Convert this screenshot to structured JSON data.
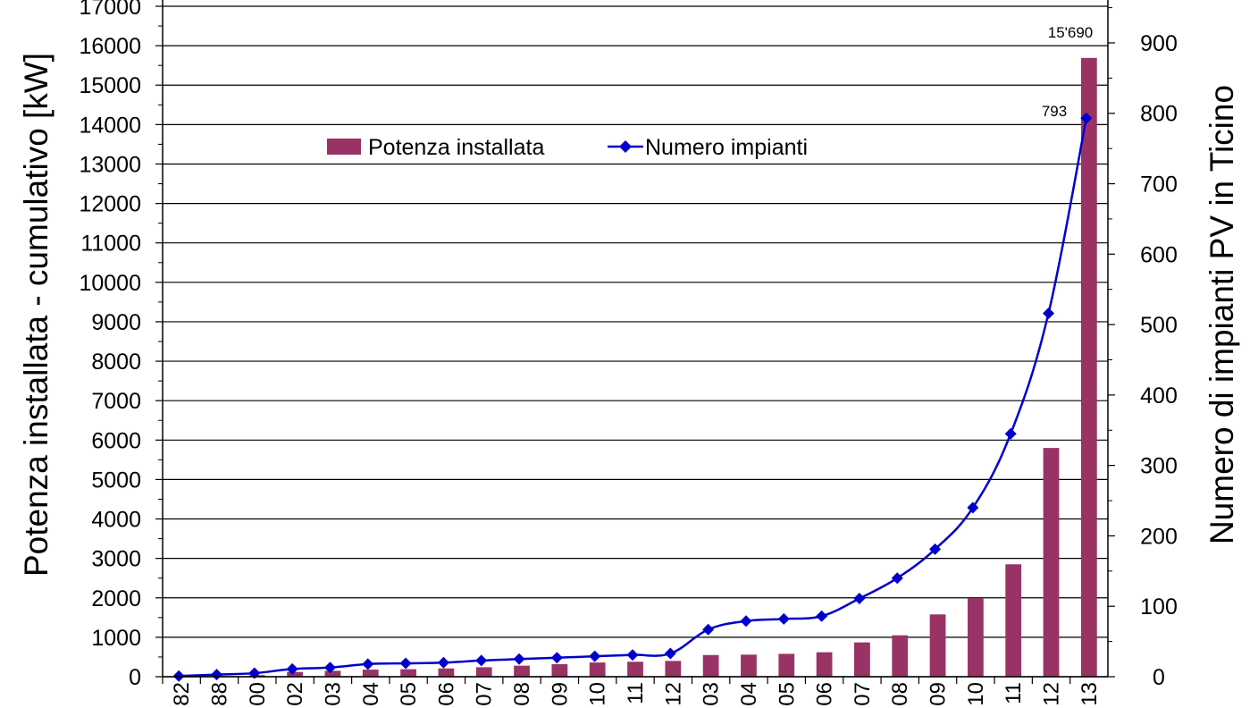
{
  "chart_data": {
    "type": "bar+line",
    "categories": [
      "82",
      "88",
      "00",
      "02",
      "03",
      "04",
      "05",
      "06",
      "07",
      "08",
      "09",
      "10",
      "11",
      "12",
      "03",
      "04",
      "05",
      "06",
      "07",
      "08",
      "09",
      "10",
      "11",
      "12",
      "13"
    ],
    "series": [
      {
        "name": "Potenza installata",
        "type": "bar",
        "axis": "left",
        "color": "#993366",
        "values": [
          10,
          20,
          40,
          120,
          150,
          180,
          190,
          210,
          240,
          280,
          320,
          360,
          380,
          400,
          550,
          560,
          580,
          620,
          870,
          1050,
          1580,
          1990,
          2850,
          5800,
          15690
        ]
      },
      {
        "name": "Numero impianti",
        "type": "line",
        "axis": "right",
        "color": "#0000cc",
        "values": [
          1,
          3,
          5,
          11,
          13,
          18,
          19,
          20,
          23,
          25,
          27,
          29,
          31,
          33,
          67,
          79,
          82,
          86,
          111,
          140,
          181,
          240,
          345,
          516,
          793
        ]
      }
    ],
    "y_left": {
      "label": "Potenza installata - cumulativo [kW]",
      "ticks": [
        0,
        1000,
        2000,
        3000,
        4000,
        5000,
        6000,
        7000,
        8000,
        9000,
        10000,
        11000,
        12000,
        13000,
        14000,
        15000,
        16000,
        17000
      ],
      "range": [
        0,
        17000
      ]
    },
    "y_right": {
      "label": "Numero di impianti PV in Ticino",
      "ticks": [
        0,
        100,
        200,
        300,
        400,
        500,
        600,
        700,
        800,
        900
      ],
      "range": [
        0,
        952
      ]
    },
    "legend": {
      "placement": "top-center",
      "items": [
        "Potenza installata",
        "Numero impianti"
      ]
    },
    "annotations": [
      {
        "text": "15'690",
        "series": "Potenza installata",
        "index": 24
      },
      {
        "text": "793",
        "series": "Numero impianti",
        "index": 24
      }
    ],
    "grid": true
  }
}
